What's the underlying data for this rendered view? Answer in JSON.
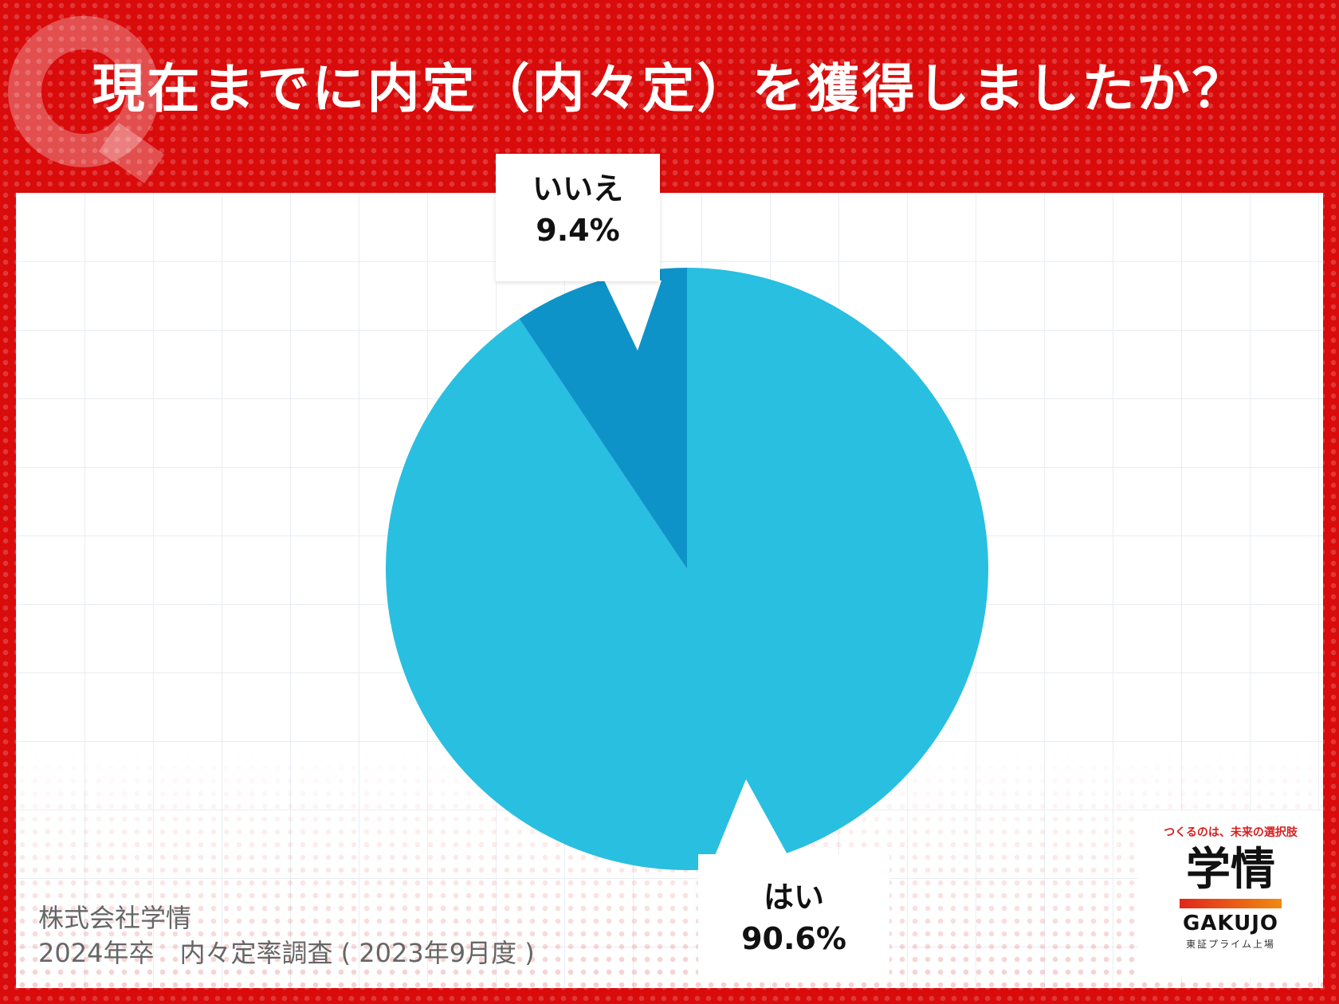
{
  "title": "現在までに内定（内々定）を獲得しましたか？",
  "chart_data": {
    "type": "pie",
    "slices": [
      {
        "label": "はい",
        "value": 90.6,
        "display": "90.6%",
        "color": "#29bfe0"
      },
      {
        "label": "いいえ",
        "value": 9.4,
        "display": "9.4%",
        "color": "#0e93c9"
      }
    ]
  },
  "source": {
    "company": "株式会社学情",
    "survey": "2024年卒　内々定率調査 ( 2023年9月度 )"
  },
  "logo": {
    "tagline": "つくるのは、未来の選択肢",
    "name_ja": "学情",
    "name_en": "GAKUJO",
    "listing": "東証プライム上場"
  },
  "colors": {
    "frame": "#d90b0b",
    "yes": "#29bfe0",
    "no": "#0e93c9"
  }
}
